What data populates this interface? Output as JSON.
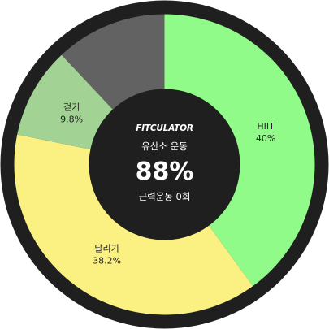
{
  "brand": "FITCULATOR",
  "center": {
    "aerobic_label": "유산소 운동",
    "aerobic_percent": "88%",
    "strength_label": "근력운동 0회"
  },
  "colors": {
    "ring": "#1f1f1f",
    "center": "#1f1f1f"
  },
  "chart_data": {
    "type": "pie",
    "segments": [
      {
        "name": "HIIT",
        "value": 40,
        "value_label": "40%",
        "color": "#90fb88"
      },
      {
        "name": "달리기",
        "value": 38.2,
        "value_label": "38.2%",
        "color": "#fbf183"
      },
      {
        "name": "걷기",
        "value": 9.8,
        "value_label": "9.8%",
        "color": "#a2d394"
      },
      {
        "name": "",
        "value": 12,
        "value_label": "",
        "color": "#626262"
      }
    ]
  }
}
